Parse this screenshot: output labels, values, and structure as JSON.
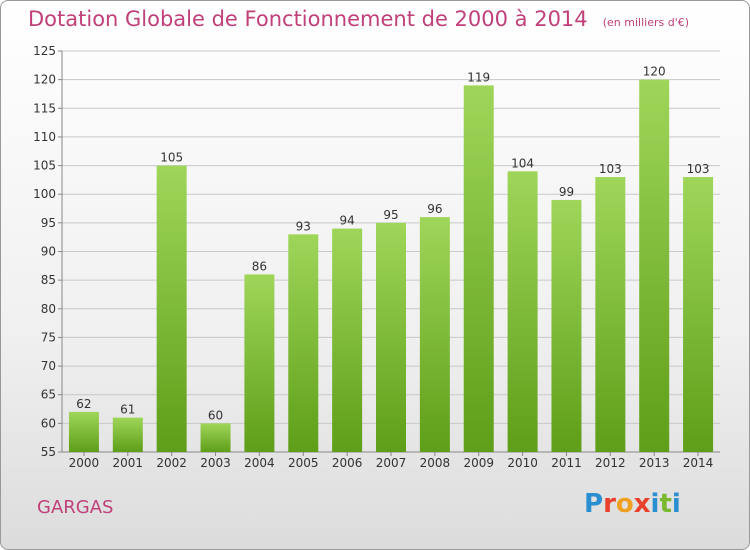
{
  "header": {
    "title": "Dotation Globale de Fonctionnement de 2000 à 2014",
    "unit": "(en milliers d'€)"
  },
  "footer": {
    "place": "GARGAS",
    "logo_text": "Proxiti",
    "logo_letter_colors": [
      "#2a8fd0",
      "#e8402a",
      "#f0a020",
      "#e8402a",
      "#2a8fd0",
      "#7ab830",
      "#2a8fd0"
    ]
  },
  "colors": {
    "title": "#c0407a",
    "bar_top": "#9fd65a",
    "bar_bottom": "#5e9e18",
    "grid": "#c8c8c8",
    "text": "#333333"
  },
  "chart_data": {
    "type": "bar",
    "categories": [
      "2000",
      "2001",
      "2002",
      "2003",
      "2004",
      "2005",
      "2006",
      "2007",
      "2008",
      "2009",
      "2010",
      "2011",
      "2012",
      "2013",
      "2014"
    ],
    "values": [
      62,
      61,
      105,
      60,
      86,
      93,
      94,
      95,
      96,
      119,
      104,
      99,
      103,
      120,
      103
    ],
    "ylim": [
      55,
      125
    ],
    "yticks": [
      55,
      60,
      65,
      70,
      75,
      80,
      85,
      90,
      95,
      100,
      105,
      110,
      115,
      120,
      125
    ],
    "grid": true
  }
}
